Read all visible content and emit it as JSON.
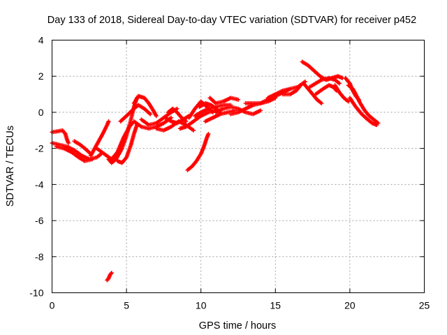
{
  "chart_data": {
    "type": "scatter",
    "title": "Day 133 of 2018, Sidereal Day-to-day VTEC variation (SDTVAR) for receiver p452",
    "xlabel": "GPS time / hours",
    "ylabel": "SDTVAR / TECUs",
    "xlim": [
      0,
      25
    ],
    "ylim": [
      -10,
      4
    ],
    "xticks": [
      0,
      5,
      10,
      15,
      20,
      25
    ],
    "yticks": [
      -10,
      -8,
      -6,
      -4,
      -2,
      0,
      2,
      4
    ],
    "grid": true,
    "marker": "plus",
    "color": "#ff0000",
    "series": [
      {
        "name": "arc-1",
        "points": [
          [
            0.0,
            -1.1
          ],
          [
            0.4,
            -1.05
          ],
          [
            0.7,
            -1.0
          ],
          [
            0.9,
            -1.2
          ],
          [
            1.0,
            -1.5
          ],
          [
            1.1,
            -1.7
          ]
        ]
      },
      {
        "name": "arc-2",
        "points": [
          [
            0.0,
            -1.7
          ],
          [
            0.5,
            -1.8
          ],
          [
            1.0,
            -1.9
          ],
          [
            1.5,
            -2.1
          ],
          [
            2.0,
            -2.4
          ],
          [
            2.5,
            -2.6
          ],
          [
            3.0,
            -2.5
          ],
          [
            3.3,
            -2.3
          ]
        ]
      },
      {
        "name": "arc-3",
        "points": [
          [
            0.3,
            -1.9
          ],
          [
            0.8,
            -2.0
          ],
          [
            1.3,
            -2.2
          ],
          [
            1.8,
            -2.5
          ],
          [
            2.2,
            -2.7
          ],
          [
            2.7,
            -2.6
          ]
        ]
      },
      {
        "name": "arc-4",
        "points": [
          [
            1.5,
            -1.6
          ],
          [
            1.9,
            -1.8
          ],
          [
            2.2,
            -2.0
          ],
          [
            2.6,
            -2.3
          ]
        ]
      },
      {
        "name": "arc-5",
        "points": [
          [
            2.6,
            -2.4
          ],
          [
            3.0,
            -1.8
          ],
          [
            3.4,
            -1.2
          ],
          [
            3.7,
            -0.7
          ],
          [
            3.8,
            -0.5
          ]
        ]
      },
      {
        "name": "arc-6",
        "points": [
          [
            3.0,
            -2.0
          ],
          [
            3.5,
            -2.3
          ],
          [
            4.0,
            -2.6
          ],
          [
            4.4,
            -2.2
          ],
          [
            4.8,
            -1.4
          ],
          [
            5.2,
            -0.8
          ],
          [
            5.4,
            -0.6
          ]
        ]
      },
      {
        "name": "arc-7",
        "points": [
          [
            3.8,
            -2.6
          ],
          [
            4.0,
            -2.8
          ],
          [
            4.3,
            -2.6
          ],
          [
            4.7,
            -2.0
          ],
          [
            5.0,
            -1.3
          ],
          [
            5.3,
            -0.4
          ],
          [
            5.5,
            0.3
          ],
          [
            5.7,
            0.8
          ]
        ]
      },
      {
        "name": "arc-8",
        "points": [
          [
            4.4,
            -2.7
          ],
          [
            4.7,
            -2.8
          ],
          [
            5.0,
            -2.5
          ],
          [
            5.3,
            -1.8
          ],
          [
            5.5,
            -1.2
          ],
          [
            5.7,
            -0.7
          ]
        ]
      },
      {
        "name": "arc-9",
        "points": [
          [
            4.6,
            -0.5
          ],
          [
            5.0,
            -0.2
          ],
          [
            5.5,
            0.2
          ],
          [
            5.8,
            0.4
          ],
          [
            6.2,
            0.2
          ],
          [
            6.6,
            -0.1
          ]
        ]
      },
      {
        "name": "arc-10",
        "points": [
          [
            5.5,
            0.5
          ],
          [
            5.8,
            0.9
          ],
          [
            6.2,
            0.8
          ],
          [
            6.5,
            0.5
          ],
          [
            6.8,
            0.1
          ],
          [
            7.0,
            -0.2
          ]
        ]
      },
      {
        "name": "arc-11",
        "points": [
          [
            5.5,
            -0.5
          ],
          [
            6.0,
            -0.8
          ],
          [
            6.5,
            -0.9
          ],
          [
            7.0,
            -0.8
          ],
          [
            7.5,
            -0.6
          ],
          [
            8.0,
            -0.3
          ]
        ]
      },
      {
        "name": "arc-12",
        "points": [
          [
            6.0,
            -0.4
          ],
          [
            6.5,
            -0.7
          ],
          [
            7.0,
            -0.6
          ],
          [
            7.5,
            -0.3
          ],
          [
            8.0,
            0.0
          ],
          [
            8.4,
            0.2
          ]
        ]
      },
      {
        "name": "arc-13",
        "points": [
          [
            7.0,
            -0.9
          ],
          [
            7.5,
            -1.0
          ],
          [
            8.0,
            -0.8
          ],
          [
            8.5,
            -0.5
          ],
          [
            9.0,
            -0.7
          ],
          [
            9.5,
            -1.0
          ]
        ]
      },
      {
        "name": "arc-14",
        "points": [
          [
            7.6,
            -0.3
          ],
          [
            8.0,
            -0.5
          ],
          [
            8.4,
            -0.6
          ],
          [
            8.8,
            -0.4
          ],
          [
            9.2,
            -0.2
          ]
        ]
      },
      {
        "name": "arc-15",
        "points": [
          [
            7.8,
            0.0
          ],
          [
            8.1,
            0.2
          ],
          [
            8.4,
            0.0
          ],
          [
            8.7,
            -0.3
          ],
          [
            9.0,
            -0.5
          ]
        ]
      },
      {
        "name": "arc-16",
        "points": [
          [
            8.6,
            -0.9
          ],
          [
            9.0,
            -0.8
          ],
          [
            9.5,
            -0.5
          ],
          [
            10.0,
            -0.2
          ],
          [
            10.5,
            0.0
          ],
          [
            11.0,
            0.1
          ]
        ]
      },
      {
        "name": "arc-17",
        "points": [
          [
            9.2,
            -0.3
          ],
          [
            9.6,
            0.2
          ],
          [
            10.0,
            0.6
          ],
          [
            10.4,
            0.3
          ],
          [
            10.8,
            0.0
          ]
        ]
      },
      {
        "name": "arc-18",
        "points": [
          [
            9.6,
            -0.2
          ],
          [
            10.0,
            0.0
          ],
          [
            10.5,
            0.2
          ],
          [
            11.0,
            0.3
          ],
          [
            11.5,
            0.4
          ],
          [
            12.0,
            0.4
          ]
        ]
      },
      {
        "name": "arc-19",
        "points": [
          [
            9.9,
            0.3
          ],
          [
            10.3,
            0.5
          ],
          [
            10.7,
            0.4
          ],
          [
            11.0,
            0.2
          ],
          [
            11.3,
            0.0
          ]
        ]
      },
      {
        "name": "arc-20",
        "points": [
          [
            10.3,
            -0.5
          ],
          [
            10.8,
            -0.3
          ],
          [
            11.3,
            -0.1
          ],
          [
            11.8,
            0.0
          ],
          [
            12.3,
            0.1
          ]
        ]
      },
      {
        "name": "arc-21",
        "points": [
          [
            10.6,
            0.8
          ],
          [
            11.0,
            0.5
          ],
          [
            11.5,
            0.6
          ],
          [
            12.0,
            0.8
          ],
          [
            12.5,
            0.7
          ]
        ]
      },
      {
        "name": "arc-22",
        "points": [
          [
            11.0,
            0.0
          ],
          [
            11.5,
            0.2
          ],
          [
            12.0,
            0.3
          ],
          [
            12.5,
            0.2
          ],
          [
            13.0,
            0.0
          ],
          [
            13.5,
            -0.1
          ],
          [
            14.0,
            0.1
          ]
        ]
      },
      {
        "name": "arc-23",
        "points": [
          [
            12.0,
            -0.1
          ],
          [
            12.5,
            0.0
          ],
          [
            13.0,
            0.2
          ],
          [
            13.5,
            0.4
          ],
          [
            14.0,
            0.5
          ],
          [
            14.5,
            0.6
          ],
          [
            15.0,
            0.8
          ]
        ]
      },
      {
        "name": "arc-24",
        "points": [
          [
            13.0,
            0.5
          ],
          [
            13.5,
            0.5
          ],
          [
            14.0,
            0.5
          ],
          [
            14.5,
            0.7
          ],
          [
            15.0,
            0.9
          ],
          [
            15.5,
            1.1
          ],
          [
            16.0,
            1.3
          ]
        ]
      },
      {
        "name": "arc-25",
        "points": [
          [
            14.5,
            0.8
          ],
          [
            15.0,
            1.0
          ],
          [
            15.5,
            1.2
          ],
          [
            16.0,
            1.3
          ],
          [
            16.5,
            1.4
          ],
          [
            17.0,
            1.7
          ]
        ]
      },
      {
        "name": "arc-26",
        "points": [
          [
            15.5,
            1.0
          ],
          [
            16.0,
            1.0
          ],
          [
            16.4,
            1.2
          ],
          [
            16.7,
            1.5
          ]
        ]
      },
      {
        "name": "arc-27",
        "points": [
          [
            16.8,
            2.8
          ],
          [
            17.2,
            2.6
          ],
          [
            17.6,
            2.3
          ],
          [
            18.0,
            2.0
          ],
          [
            18.4,
            1.8
          ],
          [
            18.8,
            1.9
          ],
          [
            19.2,
            2.0
          ],
          [
            19.5,
            1.9
          ]
        ]
      },
      {
        "name": "arc-28",
        "points": [
          [
            16.9,
            1.6
          ],
          [
            17.2,
            1.3
          ],
          [
            17.5,
            1.0
          ],
          [
            17.8,
            0.7
          ],
          [
            18.1,
            0.5
          ]
        ]
      },
      {
        "name": "arc-29",
        "points": [
          [
            17.3,
            1.4
          ],
          [
            17.7,
            1.6
          ],
          [
            18.1,
            1.8
          ],
          [
            18.6,
            1.9
          ],
          [
            19.0,
            1.8
          ],
          [
            19.3,
            1.6
          ]
        ]
      },
      {
        "name": "arc-30",
        "points": [
          [
            17.7,
            1.0
          ],
          [
            18.2,
            1.3
          ],
          [
            18.6,
            1.5
          ],
          [
            18.9,
            1.4
          ],
          [
            19.1,
            1.2
          ]
        ]
      },
      {
        "name": "arc-31",
        "points": [
          [
            19.0,
            1.5
          ],
          [
            19.3,
            1.1
          ],
          [
            19.6,
            0.8
          ],
          [
            19.9,
            0.6
          ]
        ]
      },
      {
        "name": "arc-32",
        "points": [
          [
            19.7,
            1.9
          ],
          [
            20.0,
            1.6
          ],
          [
            20.2,
            1.2
          ],
          [
            20.4,
            0.9
          ],
          [
            20.6,
            0.7
          ]
        ]
      },
      {
        "name": "arc-33",
        "points": [
          [
            19.9,
            1.5
          ],
          [
            20.2,
            1.3
          ],
          [
            20.4,
            1.0
          ],
          [
            20.7,
            0.5
          ],
          [
            21.0,
            0.1
          ],
          [
            21.3,
            -0.2
          ],
          [
            21.6,
            -0.4
          ],
          [
            21.9,
            -0.6
          ]
        ]
      },
      {
        "name": "arc-34",
        "points": [
          [
            20.0,
            0.8
          ],
          [
            20.4,
            0.3
          ],
          [
            20.8,
            -0.1
          ],
          [
            21.2,
            -0.4
          ],
          [
            21.5,
            -0.6
          ],
          [
            21.8,
            -0.7
          ]
        ]
      },
      {
        "name": "arc-35",
        "points": [
          [
            9.1,
            -3.2
          ],
          [
            9.4,
            -3.0
          ],
          [
            9.7,
            -2.7
          ],
          [
            10.0,
            -2.3
          ],
          [
            10.2,
            -1.9
          ],
          [
            10.4,
            -1.4
          ],
          [
            10.5,
            -1.2
          ]
        ]
      },
      {
        "name": "arc-36",
        "points": [
          [
            3.7,
            -9.3
          ],
          [
            3.8,
            -9.2
          ],
          [
            3.9,
            -9.0
          ],
          [
            4.0,
            -8.9
          ]
        ]
      }
    ]
  }
}
